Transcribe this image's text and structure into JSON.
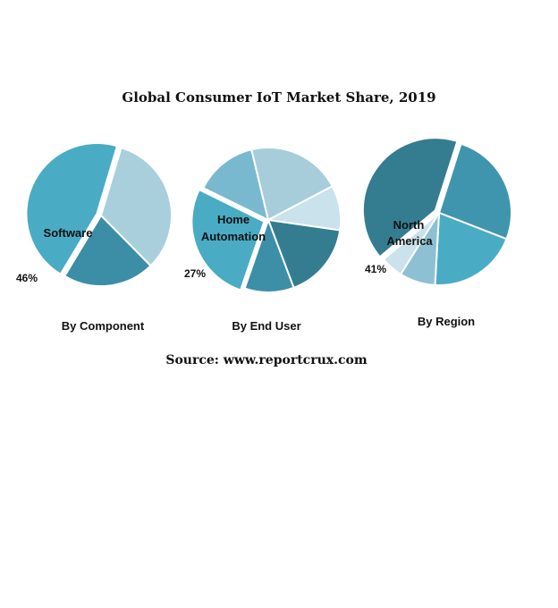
{
  "title": "Global Consumer IoT Market Share, 2019",
  "source": "Source: www.reportcrux.com",
  "chart_data": [
    {
      "type": "pie",
      "caption": "By Component",
      "slices": [
        {
          "label": "Software",
          "value": 46,
          "color": "#4AABC5",
          "exploded": true
        },
        {
          "label": "",
          "value": 33,
          "color": "#A9CFDC"
        },
        {
          "label": "",
          "value": 21,
          "color": "#3B8EA5"
        }
      ],
      "highlight": {
        "label": "Software",
        "percent_label": "46%"
      }
    },
    {
      "type": "pie",
      "caption": "By End User",
      "slices": [
        {
          "label": "Home Automation",
          "value": 27,
          "color": "#4AABC5",
          "exploded": true
        },
        {
          "label": "",
          "value": 14,
          "color": "#79B9CF"
        },
        {
          "label": "",
          "value": 21,
          "color": "#A7CDDB"
        },
        {
          "label": "",
          "value": 10,
          "color": "#C9E2EB"
        },
        {
          "label": "",
          "value": 17,
          "color": "#347D91"
        },
        {
          "label": "",
          "value": 11,
          "color": "#3C8FA6"
        }
      ],
      "highlight": {
        "label": "Home Automation",
        "percent_label": "27%"
      }
    },
    {
      "type": "pie",
      "caption": "By Region",
      "slices": [
        {
          "label": "North America",
          "value": 41,
          "color": "#347D91",
          "exploded": true
        },
        {
          "label": "",
          "value": 26,
          "color": "#3F95AD"
        },
        {
          "label": "",
          "value": 20,
          "color": "#4AABC5"
        },
        {
          "label": "",
          "value": 8,
          "color": "#8DC0D2"
        },
        {
          "label": "",
          "value": 5,
          "color": "#C9E2EB"
        }
      ],
      "highlight": {
        "label": "North America",
        "percent_label": "41%"
      }
    }
  ]
}
